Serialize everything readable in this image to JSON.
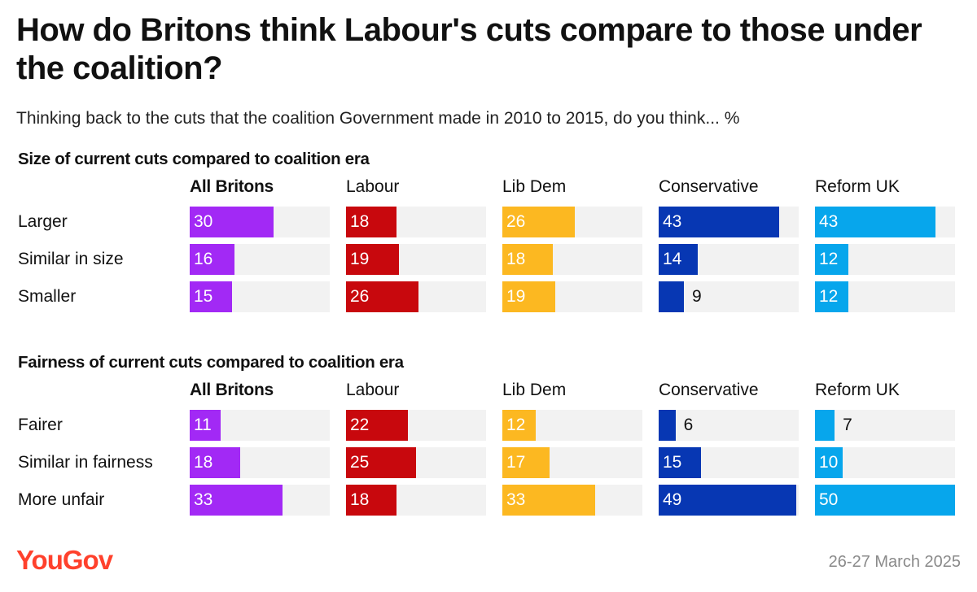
{
  "title": "How do Britons think Labour's cuts compare to those under the coalition?",
  "subtitle": "Thinking back to the cuts that the coalition Government made in 2010 to 2015, do you think... %",
  "footer": {
    "logo_text": "YouGov",
    "date": "26-27 March 2025"
  },
  "colors": {
    "All Britons": "#a229f5",
    "Labour": "#c8080d",
    "Lib Dem": "#fcb821",
    "Conservative": "#0737b3",
    "Reform UK": "#07a6ec",
    "track": "#f2f2f2",
    "logo": "#ff412c"
  },
  "chart_data": [
    {
      "type": "bar",
      "title": "Size of current cuts compared to coalition era",
      "groups": [
        "All Britons",
        "Labour",
        "Lib Dem",
        "Conservative",
        "Reform UK"
      ],
      "categories": [
        "Larger",
        "Similar in size",
        "Smaller"
      ],
      "series": [
        {
          "name": "All Britons",
          "values": [
            30,
            16,
            15
          ]
        },
        {
          "name": "Labour",
          "values": [
            18,
            19,
            26
          ]
        },
        {
          "name": "Lib Dem",
          "values": [
            26,
            18,
            19
          ]
        },
        {
          "name": "Conservative",
          "values": [
            43,
            14,
            9
          ]
        },
        {
          "name": "Reform UK",
          "values": [
            43,
            12,
            12
          ]
        }
      ],
      "xlim": [
        0,
        50
      ]
    },
    {
      "type": "bar",
      "title": "Fairness of current cuts compared to coalition era",
      "groups": [
        "All Britons",
        "Labour",
        "Lib Dem",
        "Conservative",
        "Reform UK"
      ],
      "categories": [
        "Fairer",
        "Similar in fairness",
        "More unfair"
      ],
      "series": [
        {
          "name": "All Britons",
          "values": [
            11,
            18,
            33
          ]
        },
        {
          "name": "Labour",
          "values": [
            22,
            25,
            18
          ]
        },
        {
          "name": "Lib Dem",
          "values": [
            12,
            17,
            33
          ]
        },
        {
          "name": "Conservative",
          "values": [
            6,
            15,
            49
          ]
        },
        {
          "name": "Reform UK",
          "values": [
            7,
            10,
            50
          ]
        }
      ],
      "xlim": [
        0,
        50
      ]
    }
  ]
}
